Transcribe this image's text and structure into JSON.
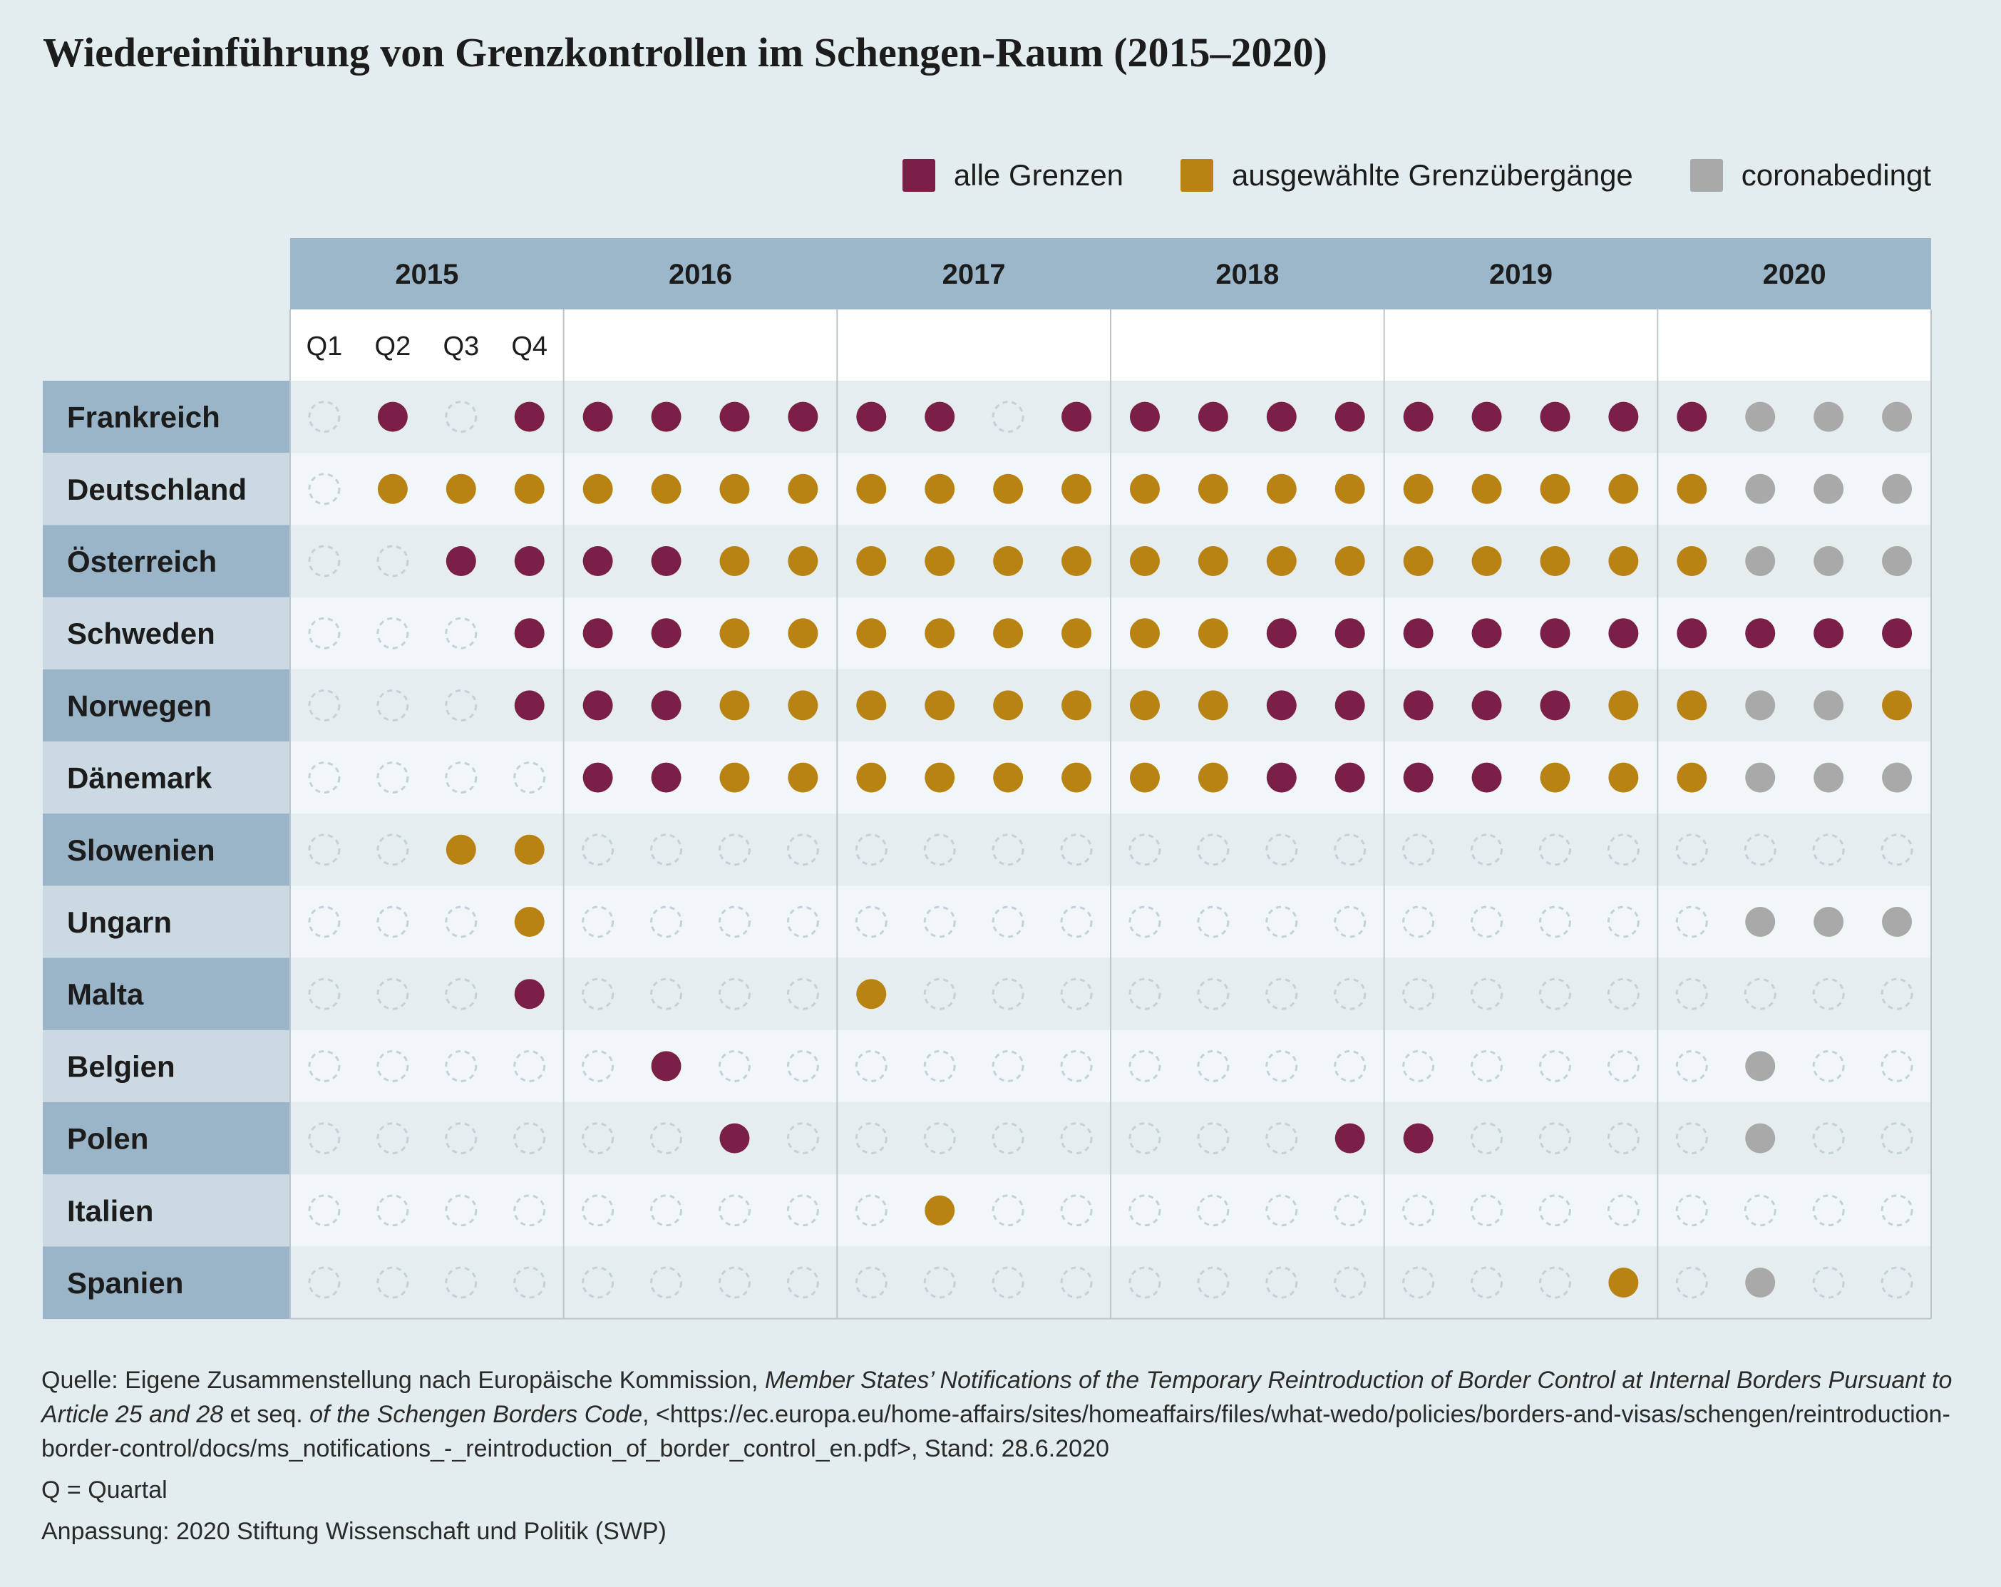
{
  "title": "Wiedereinführung von Grenzkontrollen im Schengen-Raum (2015–2020)",
  "legend": [
    {
      "key": "A",
      "label": "alle Grenzen",
      "color": "#7a1f48"
    },
    {
      "key": "S",
      "label": "ausgewählte Grenzübergänge",
      "color": "#b98314"
    },
    {
      "key": "C",
      "label": "coronabedingt",
      "color": "#a9a9a9"
    }
  ],
  "chart_data": {
    "type": "table",
    "years": [
      "2015",
      "2016",
      "2017",
      "2018",
      "2019",
      "2020"
    ],
    "quarters": [
      "Q1",
      "Q2",
      "Q3",
      "Q4"
    ],
    "status_codes": {
      "A": "alle Grenzen",
      "S": "ausgewählte Grenzübergänge",
      "C": "coronabedingt",
      "-": ""
    },
    "countries": [
      {
        "name": "Frankreich",
        "values": [
          "-",
          "A",
          "-",
          "A",
          "A",
          "A",
          "A",
          "A",
          "A",
          "A",
          "-",
          "A",
          "A",
          "A",
          "A",
          "A",
          "A",
          "A",
          "A",
          "A",
          "A",
          "C",
          "C",
          "C"
        ]
      },
      {
        "name": "Deutschland",
        "values": [
          "-",
          "S",
          "S",
          "S",
          "S",
          "S",
          "S",
          "S",
          "S",
          "S",
          "S",
          "S",
          "S",
          "S",
          "S",
          "S",
          "S",
          "S",
          "S",
          "S",
          "S",
          "C",
          "C",
          "C"
        ]
      },
      {
        "name": "Österreich",
        "values": [
          "-",
          "-",
          "A",
          "A",
          "A",
          "A",
          "S",
          "S",
          "S",
          "S",
          "S",
          "S",
          "S",
          "S",
          "S",
          "S",
          "S",
          "S",
          "S",
          "S",
          "S",
          "C",
          "C",
          "C"
        ]
      },
      {
        "name": "Schweden",
        "values": [
          "-",
          "-",
          "-",
          "A",
          "A",
          "A",
          "S",
          "S",
          "S",
          "S",
          "S",
          "S",
          "S",
          "S",
          "A",
          "A",
          "A",
          "A",
          "A",
          "A",
          "A",
          "A",
          "A",
          "A"
        ]
      },
      {
        "name": "Norwegen",
        "values": [
          "-",
          "-",
          "-",
          "A",
          "A",
          "A",
          "S",
          "S",
          "S",
          "S",
          "S",
          "S",
          "S",
          "S",
          "A",
          "A",
          "A",
          "A",
          "A",
          "S",
          "S",
          "C",
          "C",
          "S"
        ]
      },
      {
        "name": "Dänemark",
        "values": [
          "-",
          "-",
          "-",
          "-",
          "A",
          "A",
          "S",
          "S",
          "S",
          "S",
          "S",
          "S",
          "S",
          "S",
          "A",
          "A",
          "A",
          "A",
          "S",
          "S",
          "S",
          "C",
          "C",
          "C"
        ]
      },
      {
        "name": "Slowenien",
        "values": [
          "-",
          "-",
          "S",
          "S",
          "-",
          "-",
          "-",
          "-",
          "-",
          "-",
          "-",
          "-",
          "-",
          "-",
          "-",
          "-",
          "-",
          "-",
          "-",
          "-",
          "-",
          "-",
          "-",
          "-"
        ]
      },
      {
        "name": "Ungarn",
        "values": [
          "-",
          "-",
          "-",
          "S",
          "-",
          "-",
          "-",
          "-",
          "-",
          "-",
          "-",
          "-",
          "-",
          "-",
          "-",
          "-",
          "-",
          "-",
          "-",
          "-",
          "-",
          "C",
          "C",
          "C"
        ]
      },
      {
        "name": "Malta",
        "values": [
          "-",
          "-",
          "-",
          "A",
          "-",
          "-",
          "-",
          "-",
          "S",
          "-",
          "-",
          "-",
          "-",
          "-",
          "-",
          "-",
          "-",
          "-",
          "-",
          "-",
          "-",
          "-",
          "-",
          "-"
        ]
      },
      {
        "name": "Belgien",
        "values": [
          "-",
          "-",
          "-",
          "-",
          "-",
          "A",
          "-",
          "-",
          "-",
          "-",
          "-",
          "-",
          "-",
          "-",
          "-",
          "-",
          "-",
          "-",
          "-",
          "-",
          "-",
          "C",
          "-",
          "-"
        ]
      },
      {
        "name": "Polen",
        "values": [
          "-",
          "-",
          "-",
          "-",
          "-",
          "-",
          "A",
          "-",
          "-",
          "-",
          "-",
          "-",
          "-",
          "-",
          "-",
          "A",
          "A",
          "-",
          "-",
          "-",
          "-",
          "C",
          "-",
          "-"
        ]
      },
      {
        "name": "Italien",
        "values": [
          "-",
          "-",
          "-",
          "-",
          "-",
          "-",
          "-",
          "-",
          "-",
          "S",
          "-",
          "-",
          "-",
          "-",
          "-",
          "-",
          "-",
          "-",
          "-",
          "-",
          "-",
          "-",
          "-",
          "-"
        ]
      },
      {
        "name": "Spanien",
        "values": [
          "-",
          "-",
          "-",
          "-",
          "-",
          "-",
          "-",
          "-",
          "-",
          "-",
          "-",
          "-",
          "-",
          "-",
          "-",
          "-",
          "-",
          "-",
          "-",
          "S",
          "-",
          "C",
          "-",
          "-"
        ]
      }
    ]
  },
  "colors": {
    "background": "#e3ecee",
    "header_blue": "#9cb7c9",
    "label_dark": "#9ab5c8",
    "label_light": "#cbdae2",
    "row_dark": "#e5edef",
    "row_light": "#f1f6f8",
    "empty_stroke": "#c2d1db"
  },
  "sources": {
    "line1_prefix": "Quelle: Eigene Zusammenstellung nach Europäische Kommission, ",
    "line1_italic": "Member States’ Notifications of the Temporary Reintroduction of Border Control at Internal Borders Pursuant to Article 25 and 28",
    "line1_mid": " et seq. ",
    "line1_italic2": "of the Schengen Borders Code",
    "line1_suffix": ", <https://ec.europa.eu/home-affairs/sites/homeaffairs/files/what-wedo/policies/borders-and-visas/schengen/reintroduction-border-control/docs/ms_notifications_-_reintroduction_of_border_control_en.pdf>, Stand: 28.6.2020",
    "quartal_note": "Q = Quartal",
    "adaptation": "Anpassung: 2020 Stiftung Wissenschaft und Politik (SWP)"
  }
}
